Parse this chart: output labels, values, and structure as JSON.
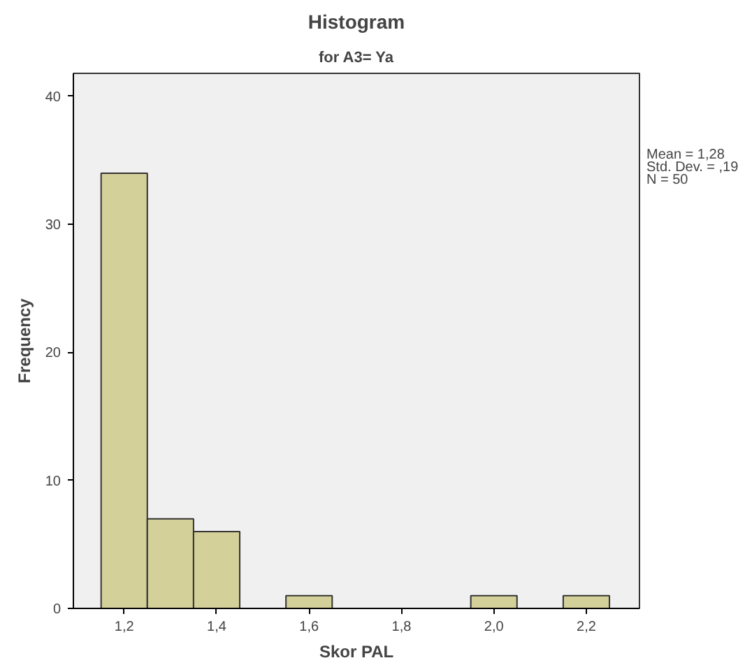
{
  "chart_data": {
    "type": "histogram",
    "title": "Histogram",
    "subtitle": "for A3= Ya",
    "xlabel": "Skor PAL",
    "ylabel": "Frequency",
    "bins": [
      1.15,
      1.25,
      1.35,
      1.45,
      1.55,
      1.65,
      1.75,
      1.85,
      1.95,
      2.05,
      2.15,
      2.25
    ],
    "values": [
      34,
      7,
      6,
      0,
      1,
      0,
      0,
      0,
      1,
      0,
      1
    ],
    "color": "#d4d09a",
    "xlim": [
      1.09,
      2.315
    ],
    "ylim": [
      0,
      41.8
    ],
    "xticks": [
      {
        "value": 1.2,
        "label": "1,2"
      },
      {
        "value": 1.4,
        "label": "1,4"
      },
      {
        "value": 1.6,
        "label": "1,6"
      },
      {
        "value": 1.8,
        "label": "1,8"
      },
      {
        "value": 2.0,
        "label": "2,0"
      },
      {
        "value": 2.2,
        "label": "2,2"
      }
    ],
    "yticks": [
      0,
      10,
      20,
      30,
      40
    ],
    "grid": false,
    "annotations": [
      "Mean = 1,28",
      "Std. Dev. = ,19",
      "N = 50"
    ]
  }
}
